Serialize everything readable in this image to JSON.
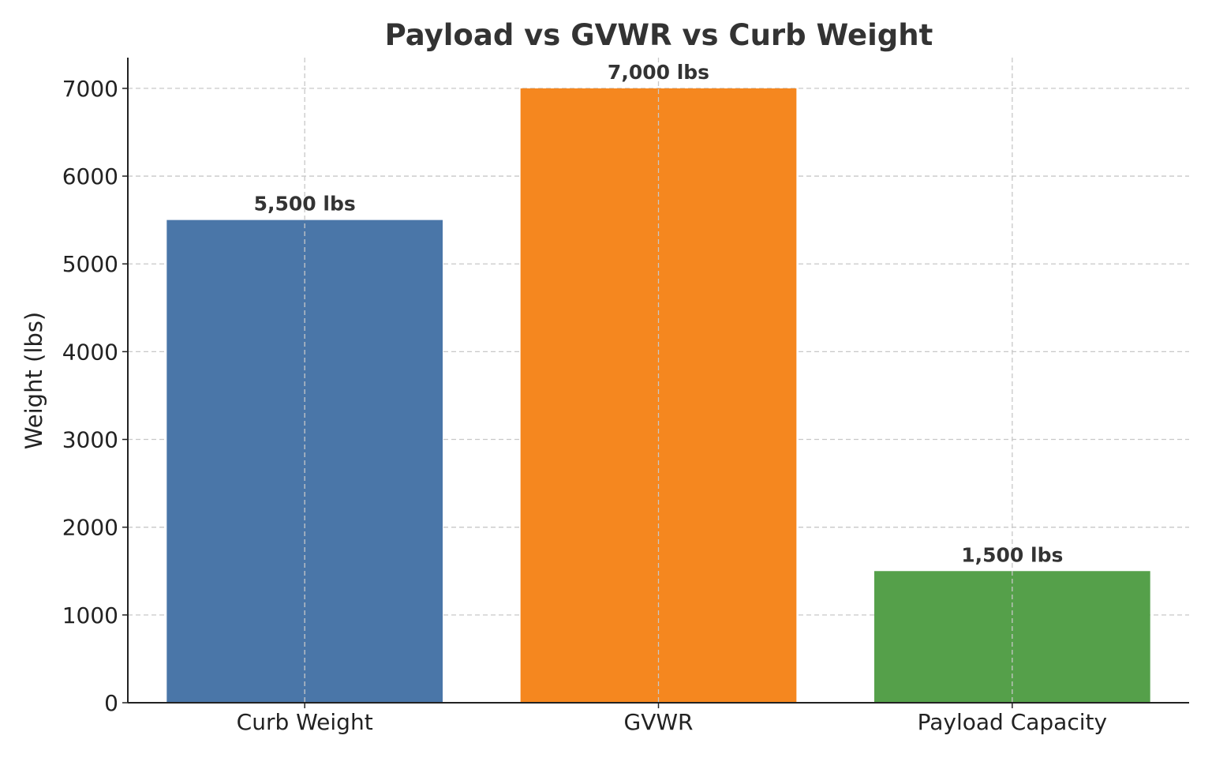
{
  "chart_data": {
    "type": "bar",
    "title": "Payload vs GVWR vs Curb Weight",
    "xlabel": "",
    "ylabel": "Weight (lbs)",
    "categories": [
      "Curb Weight",
      "GVWR",
      "Payload Capacity"
    ],
    "values": [
      5500,
      7000,
      1500
    ],
    "data_labels": [
      "5,500 lbs",
      "7,000 lbs",
      "1,500 lbs"
    ],
    "colors": [
      "#4a76a8",
      "#f5871f",
      "#55a04a"
    ],
    "ylim": [
      0,
      7350
    ],
    "yticks": [
      0,
      1000,
      2000,
      3000,
      4000,
      5000,
      6000,
      7000
    ],
    "grid": true,
    "legend": "none"
  }
}
